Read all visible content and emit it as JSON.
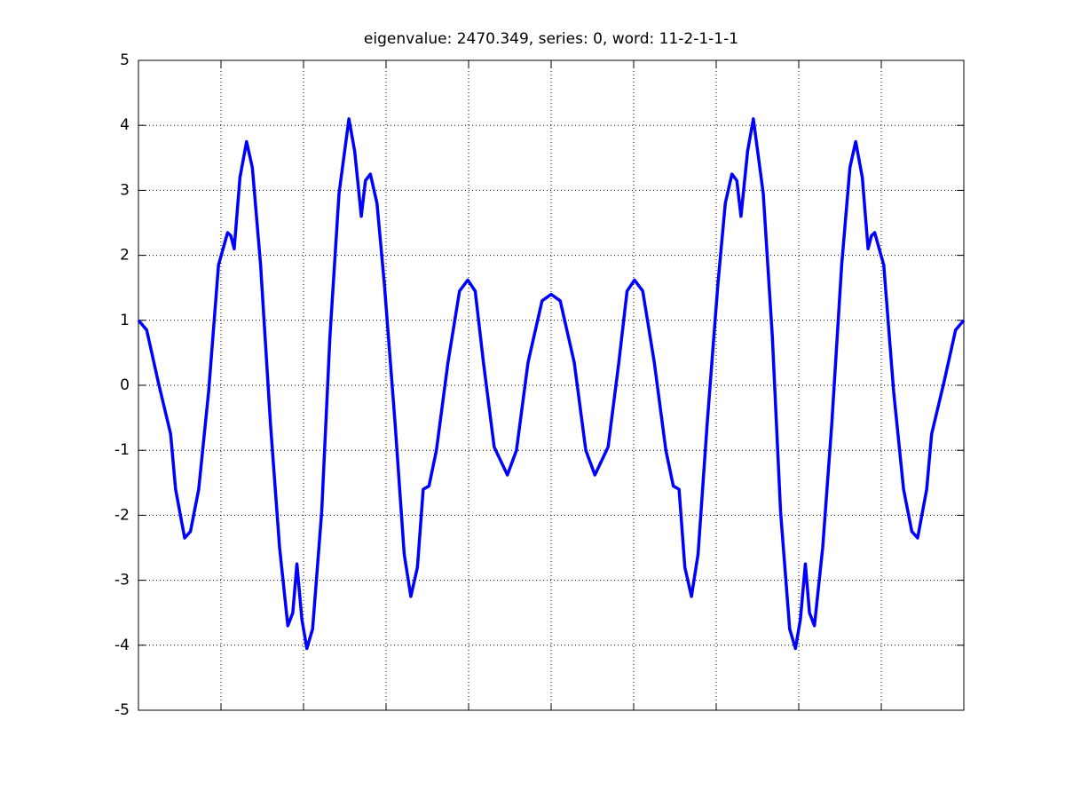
{
  "chart_data": {
    "type": "line",
    "title": "eigenvalue: 2470.349, series: 0, word: 11-2-1-1-1",
    "x": [
      0,
      0.1,
      0.24,
      0.39,
      0.45,
      0.56,
      0.63,
      0.73,
      0.85,
      0.97,
      1.08,
      1.12,
      1.16,
      1.23,
      1.31,
      1.38,
      1.48,
      1.6,
      1.71,
      1.81,
      1.87,
      1.92,
      1.98,
      2.04,
      2.11,
      2.22,
      2.32,
      2.43,
      2.55,
      2.62,
      2.7,
      2.75,
      2.81,
      2.89,
      2.98,
      3.11,
      3.22,
      3.3,
      3.38,
      3.45,
      3.52,
      3.61,
      3.75,
      3.89,
      3.99,
      4.08,
      4.18,
      4.31,
      4.47,
      4.58,
      4.72,
      4.89,
      5.0,
      5.11,
      5.28,
      5.42,
      5.53,
      5.69,
      5.82,
      5.92,
      6.01,
      6.11,
      6.25,
      6.39,
      6.48,
      6.55,
      6.62,
      6.7,
      6.78,
      6.89,
      7.02,
      7.11,
      7.19,
      7.25,
      7.3,
      7.38,
      7.45,
      7.57,
      7.68,
      7.78,
      7.89,
      7.96,
      8.02,
      8.08,
      8.13,
      8.19,
      8.29,
      8.4,
      8.52,
      8.62,
      8.69,
      8.77,
      8.84,
      8.88,
      8.92,
      9.03,
      9.15,
      9.27,
      9.37,
      9.44,
      9.55,
      9.61,
      9.76,
      9.9,
      10
    ],
    "values": [
      1.0,
      0.85,
      0.05,
      -0.75,
      -1.6,
      -2.35,
      -2.25,
      -1.6,
      -0.1,
      1.85,
      2.35,
      2.3,
      2.1,
      3.2,
      3.75,
      3.35,
      1.85,
      -0.6,
      -2.5,
      -3.7,
      -3.5,
      -2.75,
      -3.6,
      -4.05,
      -3.75,
      -1.95,
      0.75,
      2.95,
      4.1,
      3.6,
      2.6,
      3.15,
      3.25,
      2.8,
      1.55,
      -0.6,
      -2.6,
      -3.25,
      -2.8,
      -1.6,
      -1.55,
      -1.0,
      0.35,
      1.45,
      1.62,
      1.45,
      0.35,
      -0.95,
      -1.38,
      -1.0,
      0.35,
      1.3,
      1.4,
      1.3,
      0.35,
      -1.0,
      -1.38,
      -0.95,
      0.35,
      1.45,
      1.62,
      1.45,
      0.35,
      -1.0,
      -1.55,
      -1.6,
      -2.8,
      -3.25,
      -2.6,
      -0.6,
      1.55,
      2.8,
      3.25,
      3.15,
      2.6,
      3.6,
      4.1,
      2.95,
      0.75,
      -1.95,
      -3.75,
      -4.05,
      -3.6,
      -2.75,
      -3.5,
      -3.7,
      -2.5,
      -0.6,
      1.85,
      3.35,
      3.75,
      3.2,
      2.1,
      2.3,
      2.35,
      1.85,
      -0.1,
      -1.6,
      -2.25,
      -2.35,
      -1.6,
      -0.75,
      0.05,
      0.85,
      1.0
    ],
    "color": "#0000ff",
    "xlim": [
      0,
      10
    ],
    "ylim": [
      -5,
      5
    ],
    "yticks": [
      -5,
      -4,
      -3,
      -2,
      -1,
      0,
      1,
      2,
      3,
      4,
      5
    ],
    "grid": true
  }
}
